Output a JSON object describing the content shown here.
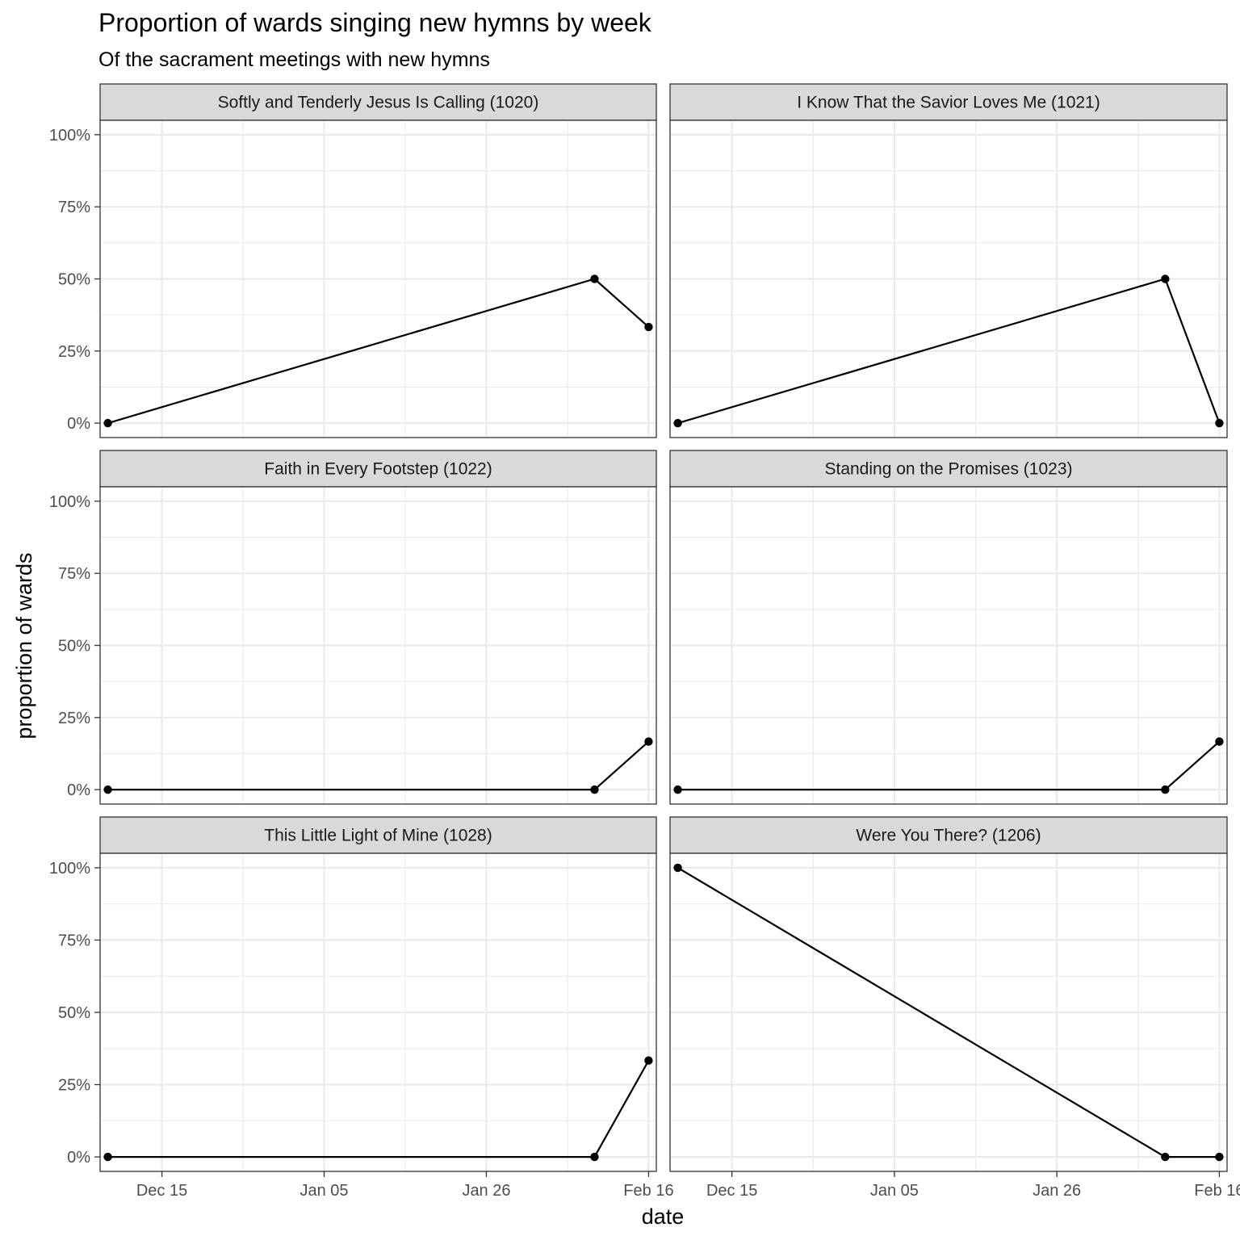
{
  "chart_data": {
    "type": "line",
    "title": "Proportion of wards singing new hymns by week",
    "subtitle": "Of the sacrament meetings with new hymns",
    "xlabel": "date",
    "ylabel": "proportion of wards",
    "x": [
      "Dec 08",
      "Feb 09",
      "Feb 16"
    ],
    "xlim": [
      "Dec 07",
      "Feb 17"
    ],
    "x_ticks": [
      "Dec 15",
      "Jan 05",
      "Jan 26",
      "Feb 16"
    ],
    "ylim": [
      -0.05,
      1.05
    ],
    "y_ticks": [
      "0%",
      "25%",
      "50%",
      "75%",
      "100%"
    ],
    "grid": true,
    "marker_color": "#000000",
    "panels": [
      {
        "title": "Softly and Tenderly Jesus Is Calling (1020)",
        "values": [
          0,
          0.5,
          0.3333
        ]
      },
      {
        "title": "I Know That the Savior Loves Me (1021)",
        "values": [
          0,
          0.5,
          0
        ]
      },
      {
        "title": "Faith in Every Footstep (1022)",
        "values": [
          0,
          0,
          0.1667
        ]
      },
      {
        "title": "Standing on the Promises (1023)",
        "values": [
          0,
          0,
          0.1667
        ]
      },
      {
        "title": "This Little Light of Mine (1028)",
        "values": [
          0,
          0,
          0.3333
        ]
      },
      {
        "title": "Were You There? (1206)",
        "values": [
          1,
          0,
          0
        ]
      }
    ]
  }
}
